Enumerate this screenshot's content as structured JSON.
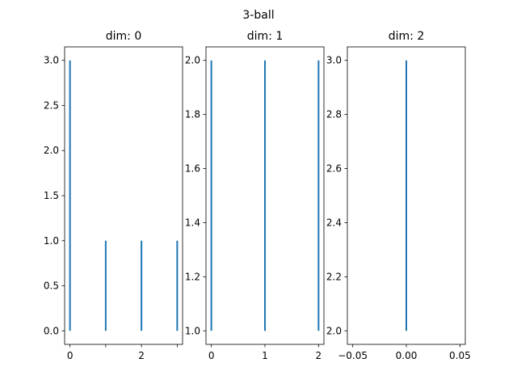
{
  "figure": {
    "suptitle": "3-ball"
  },
  "chart_data": [
    {
      "type": "bar",
      "title": "dim: 0",
      "color": "#1f77b4",
      "xlim": [
        -0.15,
        3.15
      ],
      "ylim": [
        -0.15,
        3.15
      ],
      "xticks": [
        0,
        1,
        2,
        3
      ],
      "xtick_labels": [
        "0",
        "",
        "2",
        ""
      ],
      "yticks": [
        0.0,
        0.5,
        1.0,
        1.5,
        2.0,
        2.5,
        3.0
      ],
      "ytick_labels": [
        "0.0",
        "0.5",
        "1.0",
        "1.5",
        "2.0",
        "2.5",
        "3.0"
      ],
      "segments": [
        {
          "x": 0,
          "y0": 0,
          "y1": 3
        },
        {
          "x": 1,
          "y0": 0,
          "y1": 1
        },
        {
          "x": 2,
          "y0": 0,
          "y1": 1
        },
        {
          "x": 3,
          "y0": 0,
          "y1": 1
        }
      ]
    },
    {
      "type": "bar",
      "title": "dim: 1",
      "color": "#1f77b4",
      "xlim": [
        -0.1,
        2.1
      ],
      "ylim": [
        0.95,
        2.05
      ],
      "xticks": [
        0,
        1,
        2
      ],
      "xtick_labels": [
        "0",
        "1",
        "2"
      ],
      "yticks": [
        1.0,
        1.2,
        1.4,
        1.6,
        1.8,
        2.0
      ],
      "ytick_labels": [
        "1.0",
        "1.2",
        "1.4",
        "1.6",
        "1.8",
        "2.0"
      ],
      "segments": [
        {
          "x": 0,
          "y0": 1,
          "y1": 2
        },
        {
          "x": 1,
          "y0": 1,
          "y1": 2
        },
        {
          "x": 2,
          "y0": 1,
          "y1": 2
        }
      ]
    },
    {
      "type": "bar",
      "title": "dim: 2",
      "color": "#1f77b4",
      "xlim": [
        -0.055,
        0.055
      ],
      "ylim": [
        1.95,
        3.05
      ],
      "xticks": [
        -0.05,
        0.0,
        0.05
      ],
      "xtick_labels": [
        "−0.05",
        "0.00",
        "0.05"
      ],
      "yticks": [
        2.0,
        2.2,
        2.4,
        2.6,
        2.8,
        3.0
      ],
      "ytick_labels": [
        "2.0",
        "2.2",
        "2.4",
        "2.6",
        "2.8",
        "3.0"
      ],
      "segments": [
        {
          "x": 0,
          "y0": 2,
          "y1": 3
        }
      ]
    }
  ]
}
